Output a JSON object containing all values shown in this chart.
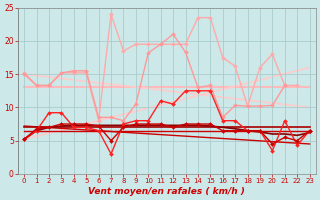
{
  "background_color": "#cce8e8",
  "grid_color": "#aacccc",
  "xlabel": "Vent moyen/en rafales ( km/h )",
  "xlabel_color": "#cc0000",
  "tick_color": "#cc0000",
  "xlim": [
    -0.5,
    23.5
  ],
  "ylim": [
    0,
    25
  ],
  "yticks": [
    0,
    5,
    10,
    15,
    20,
    25
  ],
  "xticks": [
    0,
    1,
    2,
    3,
    4,
    5,
    6,
    7,
    8,
    9,
    10,
    11,
    12,
    13,
    14,
    15,
    16,
    17,
    18,
    19,
    20,
    21,
    22,
    23
  ],
  "lines": [
    {
      "x": [
        0,
        1,
        2,
        3,
        4,
        5,
        6,
        7,
        8,
        9,
        10,
        11,
        12,
        13,
        14,
        15,
        16,
        17,
        18,
        19,
        20,
        21,
        22
      ],
      "y": [
        15.2,
        13.3,
        13.3,
        15.2,
        15.2,
        15.2,
        8.0,
        24.0,
        18.5,
        19.5,
        19.5,
        19.5,
        19.5,
        19.5,
        23.5,
        23.5,
        17.5,
        16.2,
        10.2,
        16.0,
        18.0,
        13.3,
        13.3
      ],
      "color": "#ffaaaa",
      "marker": "D",
      "markersize": 2,
      "linewidth": 1.0,
      "zorder": 2
    },
    {
      "x": [
        0,
        1,
        2,
        3,
        4,
        5,
        6,
        7,
        8,
        9,
        10,
        11,
        12,
        13,
        14,
        15,
        16,
        17,
        18,
        19,
        20,
        21
      ],
      "y": [
        15.0,
        13.3,
        13.3,
        15.2,
        15.5,
        15.5,
        8.5,
        8.5,
        8.0,
        10.5,
        18.2,
        19.5,
        21.0,
        18.3,
        13.0,
        13.3,
        8.5,
        10.3,
        10.2,
        10.2,
        10.3,
        13.3
      ],
      "color": "#ff9999",
      "marker": "D",
      "markersize": 2,
      "linewidth": 1.0,
      "zorder": 2
    },
    {
      "x": [
        0,
        23
      ],
      "y": [
        13.0,
        13.0
      ],
      "color": "#ffbbbb",
      "marker": null,
      "markersize": 0,
      "linewidth": 1.5,
      "zorder": 1
    },
    {
      "x": [
        0,
        23
      ],
      "y": [
        5.2,
        16.0
      ],
      "color": "#ffcccc",
      "marker": null,
      "markersize": 0,
      "linewidth": 1.2,
      "zorder": 1
    },
    {
      "x": [
        0,
        23
      ],
      "y": [
        15.0,
        10.0
      ],
      "color": "#ffcccc",
      "marker": null,
      "markersize": 0,
      "linewidth": 1.2,
      "zorder": 1
    },
    {
      "x": [
        0,
        1,
        2,
        3,
        4,
        5,
        6,
        7,
        8,
        9,
        10,
        11,
        12,
        13,
        14,
        15,
        16,
        17,
        18,
        19,
        20,
        21,
        22,
        23
      ],
      "y": [
        5.2,
        6.5,
        9.2,
        9.2,
        7.0,
        7.0,
        6.5,
        3.0,
        7.5,
        8.0,
        8.0,
        11.0,
        10.5,
        12.5,
        12.5,
        12.5,
        8.0,
        8.0,
        6.5,
        6.5,
        3.5,
        8.0,
        4.3,
        6.5
      ],
      "color": "#ff2222",
      "marker": "D",
      "markersize": 2,
      "linewidth": 1.0,
      "zorder": 3
    },
    {
      "x": [
        0,
        23
      ],
      "y": [
        7.2,
        4.5
      ],
      "color": "#cc0000",
      "marker": null,
      "markersize": 0,
      "linewidth": 1.0,
      "zorder": 2
    },
    {
      "x": [
        0,
        23
      ],
      "y": [
        7.0,
        7.0
      ],
      "color": "#aa0000",
      "marker": null,
      "markersize": 0,
      "linewidth": 1.2,
      "zorder": 2
    },
    {
      "x": [
        0,
        23
      ],
      "y": [
        6.5,
        6.5
      ],
      "color": "#cc0000",
      "marker": null,
      "markersize": 0,
      "linewidth": 1.0,
      "zorder": 2
    },
    {
      "x": [
        0,
        1,
        2,
        3,
        4,
        5,
        6,
        7,
        8,
        9,
        10,
        11,
        12,
        13,
        14,
        15,
        16,
        17,
        18,
        19,
        20,
        21,
        22,
        23
      ],
      "y": [
        5.2,
        6.8,
        7.0,
        7.5,
        7.5,
        7.5,
        7.2,
        5.0,
        7.0,
        7.5,
        7.5,
        7.5,
        7.0,
        7.5,
        7.5,
        7.5,
        6.5,
        6.5,
        6.5,
        6.5,
        4.5,
        5.5,
        5.0,
        6.5
      ],
      "color": "#cc0000",
      "marker": "D",
      "markersize": 2,
      "linewidth": 1.0,
      "zorder": 3
    },
    {
      "x": [
        0,
        1,
        2,
        3,
        4,
        5,
        6,
        7,
        8,
        9,
        10,
        11,
        12,
        13,
        14,
        15,
        16,
        17,
        18,
        19,
        20,
        21,
        22,
        23
      ],
      "y": [
        5.2,
        6.5,
        7.0,
        7.2,
        7.3,
        7.3,
        7.3,
        7.3,
        7.3,
        7.3,
        7.3,
        7.3,
        7.3,
        7.3,
        7.3,
        7.2,
        7.0,
        6.8,
        6.5,
        6.3,
        6.0,
        6.0,
        5.8,
        6.2
      ],
      "color": "#880000",
      "marker": null,
      "markersize": 0,
      "linewidth": 1.2,
      "zorder": 2
    }
  ]
}
